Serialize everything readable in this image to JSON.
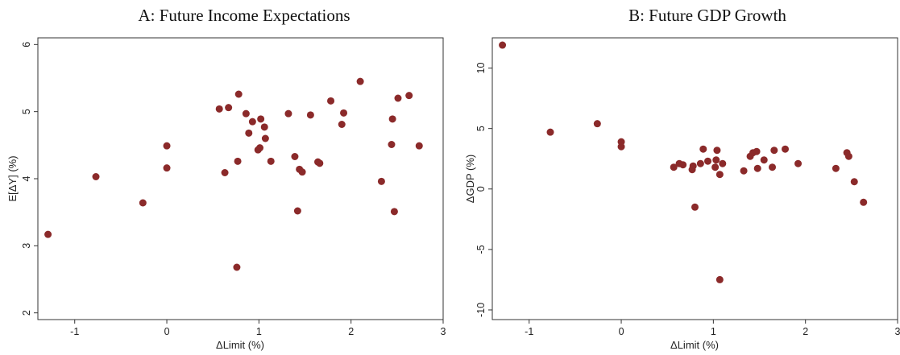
{
  "chart_data": [
    {
      "type": "scatter",
      "title": "A: Future Income Expectations",
      "xlabel": "ΔLimit (%)",
      "ylabel": "E[ΔY] (%)",
      "xlim": [
        -1.4,
        3.0
      ],
      "ylim": [
        1.9,
        6.1
      ],
      "xticks": [
        -1,
        0,
        1,
        2,
        3
      ],
      "yticks": [
        2,
        3,
        4,
        5,
        6
      ],
      "grid": false,
      "marker_color": "#8b2a2a",
      "points": [
        {
          "x": -1.29,
          "y": 3.17
        },
        {
          "x": -0.77,
          "y": 4.03
        },
        {
          "x": -0.26,
          "y": 3.64
        },
        {
          "x": 0.0,
          "y": 4.49
        },
        {
          "x": 0.0,
          "y": 4.16
        },
        {
          "x": 0.57,
          "y": 5.04
        },
        {
          "x": 0.67,
          "y": 5.06
        },
        {
          "x": 0.63,
          "y": 4.09
        },
        {
          "x": 0.78,
          "y": 5.26
        },
        {
          "x": 0.77,
          "y": 4.26
        },
        {
          "x": 0.76,
          "y": 2.68
        },
        {
          "x": 0.86,
          "y": 4.97
        },
        {
          "x": 0.89,
          "y": 4.68
        },
        {
          "x": 0.93,
          "y": 4.85
        },
        {
          "x": 1.02,
          "y": 4.89
        },
        {
          "x": 1.06,
          "y": 4.77
        },
        {
          "x": 1.01,
          "y": 4.46
        },
        {
          "x": 0.99,
          "y": 4.43
        },
        {
          "x": 1.07,
          "y": 4.6
        },
        {
          "x": 1.13,
          "y": 4.26
        },
        {
          "x": 1.32,
          "y": 4.97
        },
        {
          "x": 1.39,
          "y": 4.33
        },
        {
          "x": 1.44,
          "y": 4.14
        },
        {
          "x": 1.47,
          "y": 4.1
        },
        {
          "x": 1.42,
          "y": 3.52
        },
        {
          "x": 1.56,
          "y": 4.95
        },
        {
          "x": 1.64,
          "y": 4.25
        },
        {
          "x": 1.66,
          "y": 4.23
        },
        {
          "x": 1.78,
          "y": 5.16
        },
        {
          "x": 1.9,
          "y": 4.81
        },
        {
          "x": 1.92,
          "y": 4.98
        },
        {
          "x": 2.1,
          "y": 5.45
        },
        {
          "x": 2.33,
          "y": 3.96
        },
        {
          "x": 2.44,
          "y": 4.51
        },
        {
          "x": 2.45,
          "y": 4.89
        },
        {
          "x": 2.51,
          "y": 5.2
        },
        {
          "x": 2.47,
          "y": 3.51
        },
        {
          "x": 2.63,
          "y": 5.24
        },
        {
          "x": 2.74,
          "y": 4.49
        }
      ]
    },
    {
      "type": "scatter",
      "title": "B: Future GDP Growth",
      "xlabel": "ΔLimit (%)",
      "ylabel": "ΔGDP (%)",
      "xlim": [
        -1.4,
        3.0
      ],
      "ylim": [
        -10.8,
        12.5
      ],
      "xticks": [
        -1,
        0,
        1,
        2,
        3
      ],
      "yticks": [
        -10,
        -5,
        0,
        5,
        10
      ],
      "grid": false,
      "marker_color": "#8b2a2a",
      "points": [
        {
          "x": -1.29,
          "y": 11.9
        },
        {
          "x": -0.77,
          "y": 4.7
        },
        {
          "x": -0.26,
          "y": 5.4
        },
        {
          "x": 0.0,
          "y": 3.9
        },
        {
          "x": 0.0,
          "y": 3.5
        },
        {
          "x": 0.57,
          "y": 1.8
        },
        {
          "x": 0.63,
          "y": 2.1
        },
        {
          "x": 0.67,
          "y": 2.0
        },
        {
          "x": 0.77,
          "y": 1.6
        },
        {
          "x": 0.78,
          "y": 1.9
        },
        {
          "x": 0.8,
          "y": -1.5
        },
        {
          "x": 0.86,
          "y": 2.1
        },
        {
          "x": 0.89,
          "y": 3.3
        },
        {
          "x": 0.94,
          "y": 2.3
        },
        {
          "x": 1.02,
          "y": 1.8
        },
        {
          "x": 1.03,
          "y": 2.4
        },
        {
          "x": 1.04,
          "y": 3.2
        },
        {
          "x": 1.07,
          "y": 1.2
        },
        {
          "x": 1.1,
          "y": 2.1
        },
        {
          "x": 1.07,
          "y": -7.5
        },
        {
          "x": 1.33,
          "y": 1.5
        },
        {
          "x": 1.4,
          "y": 2.7
        },
        {
          "x": 1.43,
          "y": 3.0
        },
        {
          "x": 1.47,
          "y": 3.1
        },
        {
          "x": 1.48,
          "y": 1.7
        },
        {
          "x": 1.55,
          "y": 2.4
        },
        {
          "x": 1.64,
          "y": 1.8
        },
        {
          "x": 1.66,
          "y": 3.2
        },
        {
          "x": 1.78,
          "y": 3.3
        },
        {
          "x": 1.92,
          "y": 2.1
        },
        {
          "x": 2.33,
          "y": 1.7
        },
        {
          "x": 2.45,
          "y": 3.0
        },
        {
          "x": 2.47,
          "y": 2.7
        },
        {
          "x": 2.53,
          "y": 0.6
        },
        {
          "x": 2.63,
          "y": -1.1
        }
      ]
    }
  ]
}
